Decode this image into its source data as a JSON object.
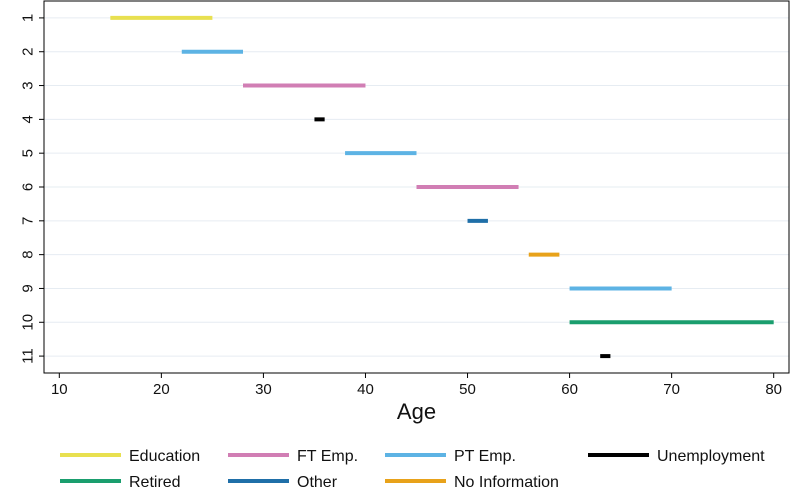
{
  "chart_data": {
    "type": "range-bar",
    "title": "",
    "xlabel": "Age",
    "ylabel": "",
    "xlim": [
      8.5,
      81.5
    ],
    "ylim": [
      0.5,
      11.5
    ],
    "y_reversed": true,
    "x_ticks": [
      10,
      20,
      30,
      40,
      50,
      60,
      70,
      80
    ],
    "y_ticks": [
      "1",
      "2",
      "3",
      "4",
      "5",
      "6",
      "7",
      "8",
      "9",
      "10",
      "11"
    ],
    "grid": "horizontal",
    "legend_position": "bottom",
    "categories": [
      {
        "key": "education",
        "label": "Education",
        "color": "#e8e050"
      },
      {
        "key": "ft",
        "label": "FT Emp.",
        "color": "#d17eb4"
      },
      {
        "key": "pt",
        "label": "PT Emp.",
        "color": "#5db3e4"
      },
      {
        "key": "unemp",
        "label": "Unemployment",
        "color": "#000000"
      },
      {
        "key": "retired",
        "label": "Retired",
        "color": "#1a9e6e"
      },
      {
        "key": "other",
        "label": "Other",
        "color": "#1f6fa8"
      },
      {
        "key": "noinfo",
        "label": "No Information",
        "color": "#e8a21a"
      }
    ],
    "segments": [
      {
        "row": 1,
        "start": 15,
        "end": 25,
        "category": "education"
      },
      {
        "row": 2,
        "start": 22,
        "end": 28,
        "category": "pt"
      },
      {
        "row": 3,
        "start": 28,
        "end": 40,
        "category": "ft"
      },
      {
        "row": 4,
        "start": 35,
        "end": 36,
        "category": "unemp"
      },
      {
        "row": 5,
        "start": 38,
        "end": 45,
        "category": "pt"
      },
      {
        "row": 6,
        "start": 45,
        "end": 55,
        "category": "ft"
      },
      {
        "row": 7,
        "start": 50,
        "end": 52,
        "category": "other"
      },
      {
        "row": 8,
        "start": 56,
        "end": 59,
        "category": "noinfo"
      },
      {
        "row": 9,
        "start": 60,
        "end": 70,
        "category": "pt"
      },
      {
        "row": 10,
        "start": 60,
        "end": 80,
        "category": "retired"
      },
      {
        "row": 11,
        "start": 63,
        "end": 64,
        "category": "unemp"
      }
    ]
  }
}
